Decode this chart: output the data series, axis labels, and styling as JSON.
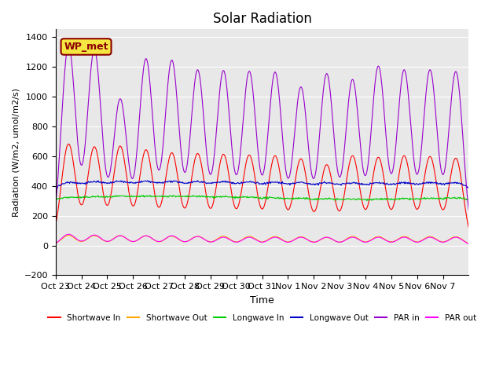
{
  "title": "Solar Radiation",
  "ylabel": "Radiation (W/m2, umol/m2/s)",
  "xlabel": "Time",
  "ylim": [
    -200,
    1450
  ],
  "yticks": [
    -200,
    0,
    200,
    400,
    600,
    800,
    1000,
    1200,
    1400
  ],
  "background_color": "#e8e8e8",
  "legend_label": "WP_met",
  "x_tick_labels": [
    "Oct 23",
    "Oct 24",
    "Oct 25",
    "Oct 26",
    "Oct 27",
    "Oct 28",
    "Oct 29",
    "Oct 30",
    "Oct 31",
    "Nov 1",
    "Nov 2",
    "Nov 3",
    "Nov 4",
    "Nov 5",
    "Nov 6",
    "Nov 7"
  ],
  "x_tick_positions": [
    0,
    1,
    2,
    3,
    4,
    5,
    6,
    7,
    8,
    9,
    10,
    11,
    12,
    13,
    14,
    15
  ],
  "series": {
    "shortwave_in": {
      "color": "#ff0000",
      "label": "Shortwave In"
    },
    "shortwave_out": {
      "color": "#ffa500",
      "label": "Shortwave Out"
    },
    "longwave_in": {
      "color": "#00cc00",
      "label": "Longwave In"
    },
    "longwave_out": {
      "color": "#0000cc",
      "label": "Longwave Out"
    },
    "par_in": {
      "color": "#9900cc",
      "label": "PAR in"
    },
    "par_out": {
      "color": "#ff00ff",
      "label": "PAR out"
    }
  },
  "day_peaks": {
    "shortwave_in": [
      680,
      660,
      665,
      640,
      620,
      615,
      610,
      605,
      600,
      580,
      540,
      600,
      590,
      600,
      595,
      585
    ],
    "par_in": [
      1340,
      1310,
      980,
      1250,
      1240,
      1175,
      1170,
      1165,
      1160,
      1060,
      1150,
      1110,
      1200,
      1175,
      1175,
      1165
    ],
    "par_out": [
      75,
      70,
      65,
      65,
      65,
      60,
      55,
      55,
      55,
      55,
      55,
      55,
      55,
      55,
      55,
      55
    ]
  },
  "longwave_in_base": 300,
  "longwave_out_base": 360,
  "num_days": 16,
  "pts_per_day": 48
}
